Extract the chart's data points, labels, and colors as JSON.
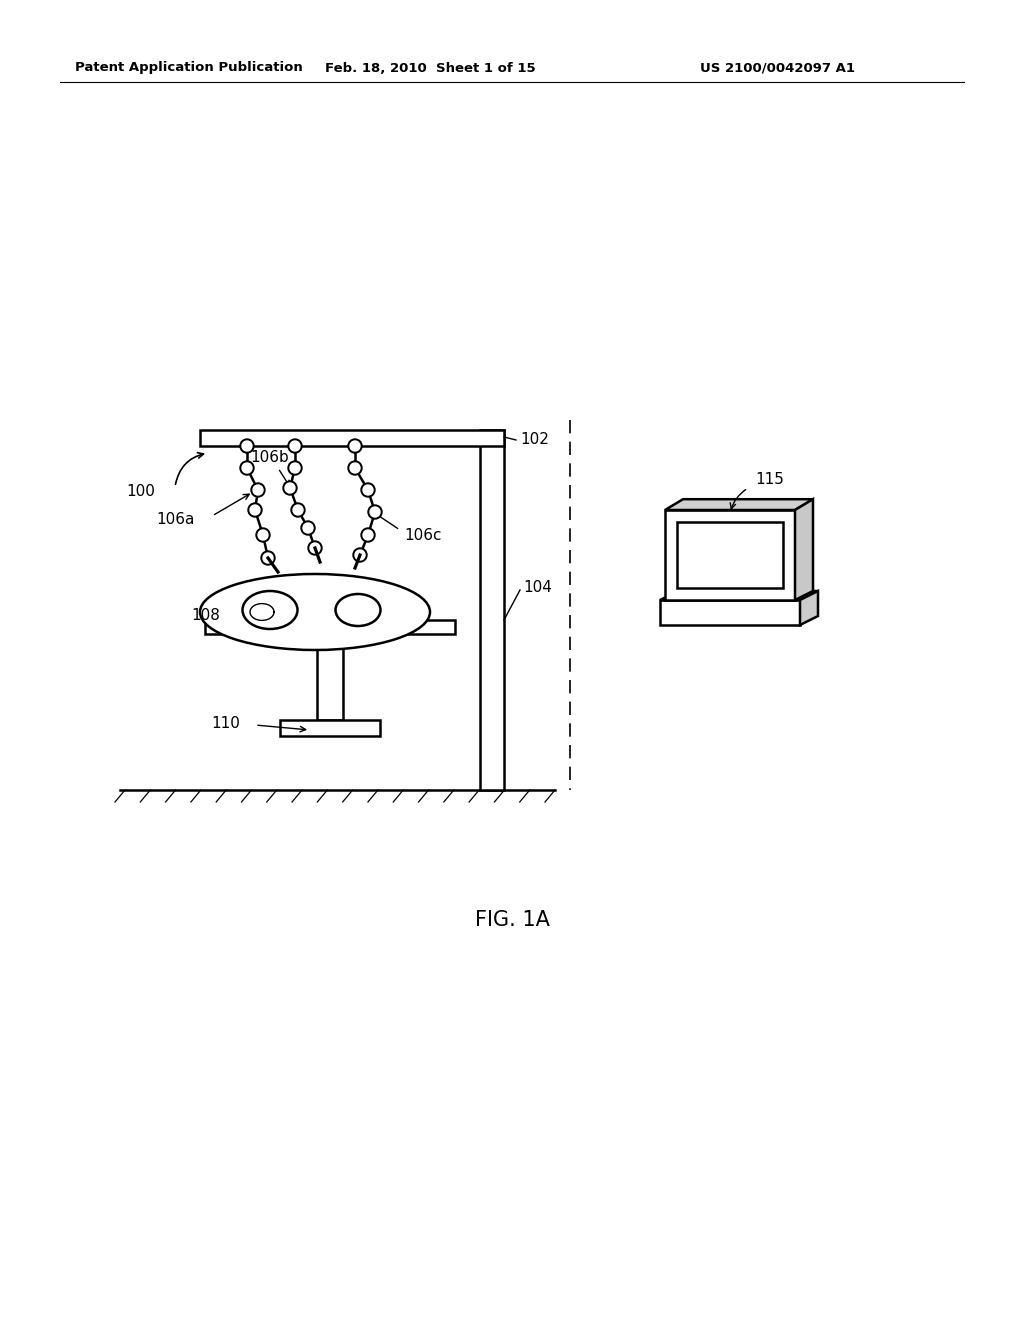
{
  "bg_color": "#ffffff",
  "header_left": "Patent Application Publication",
  "header_mid": "Feb. 18, 2010  Sheet 1 of 15",
  "header_right": "US 2100/0042097 A1",
  "fig_label": "FIG. 1A"
}
